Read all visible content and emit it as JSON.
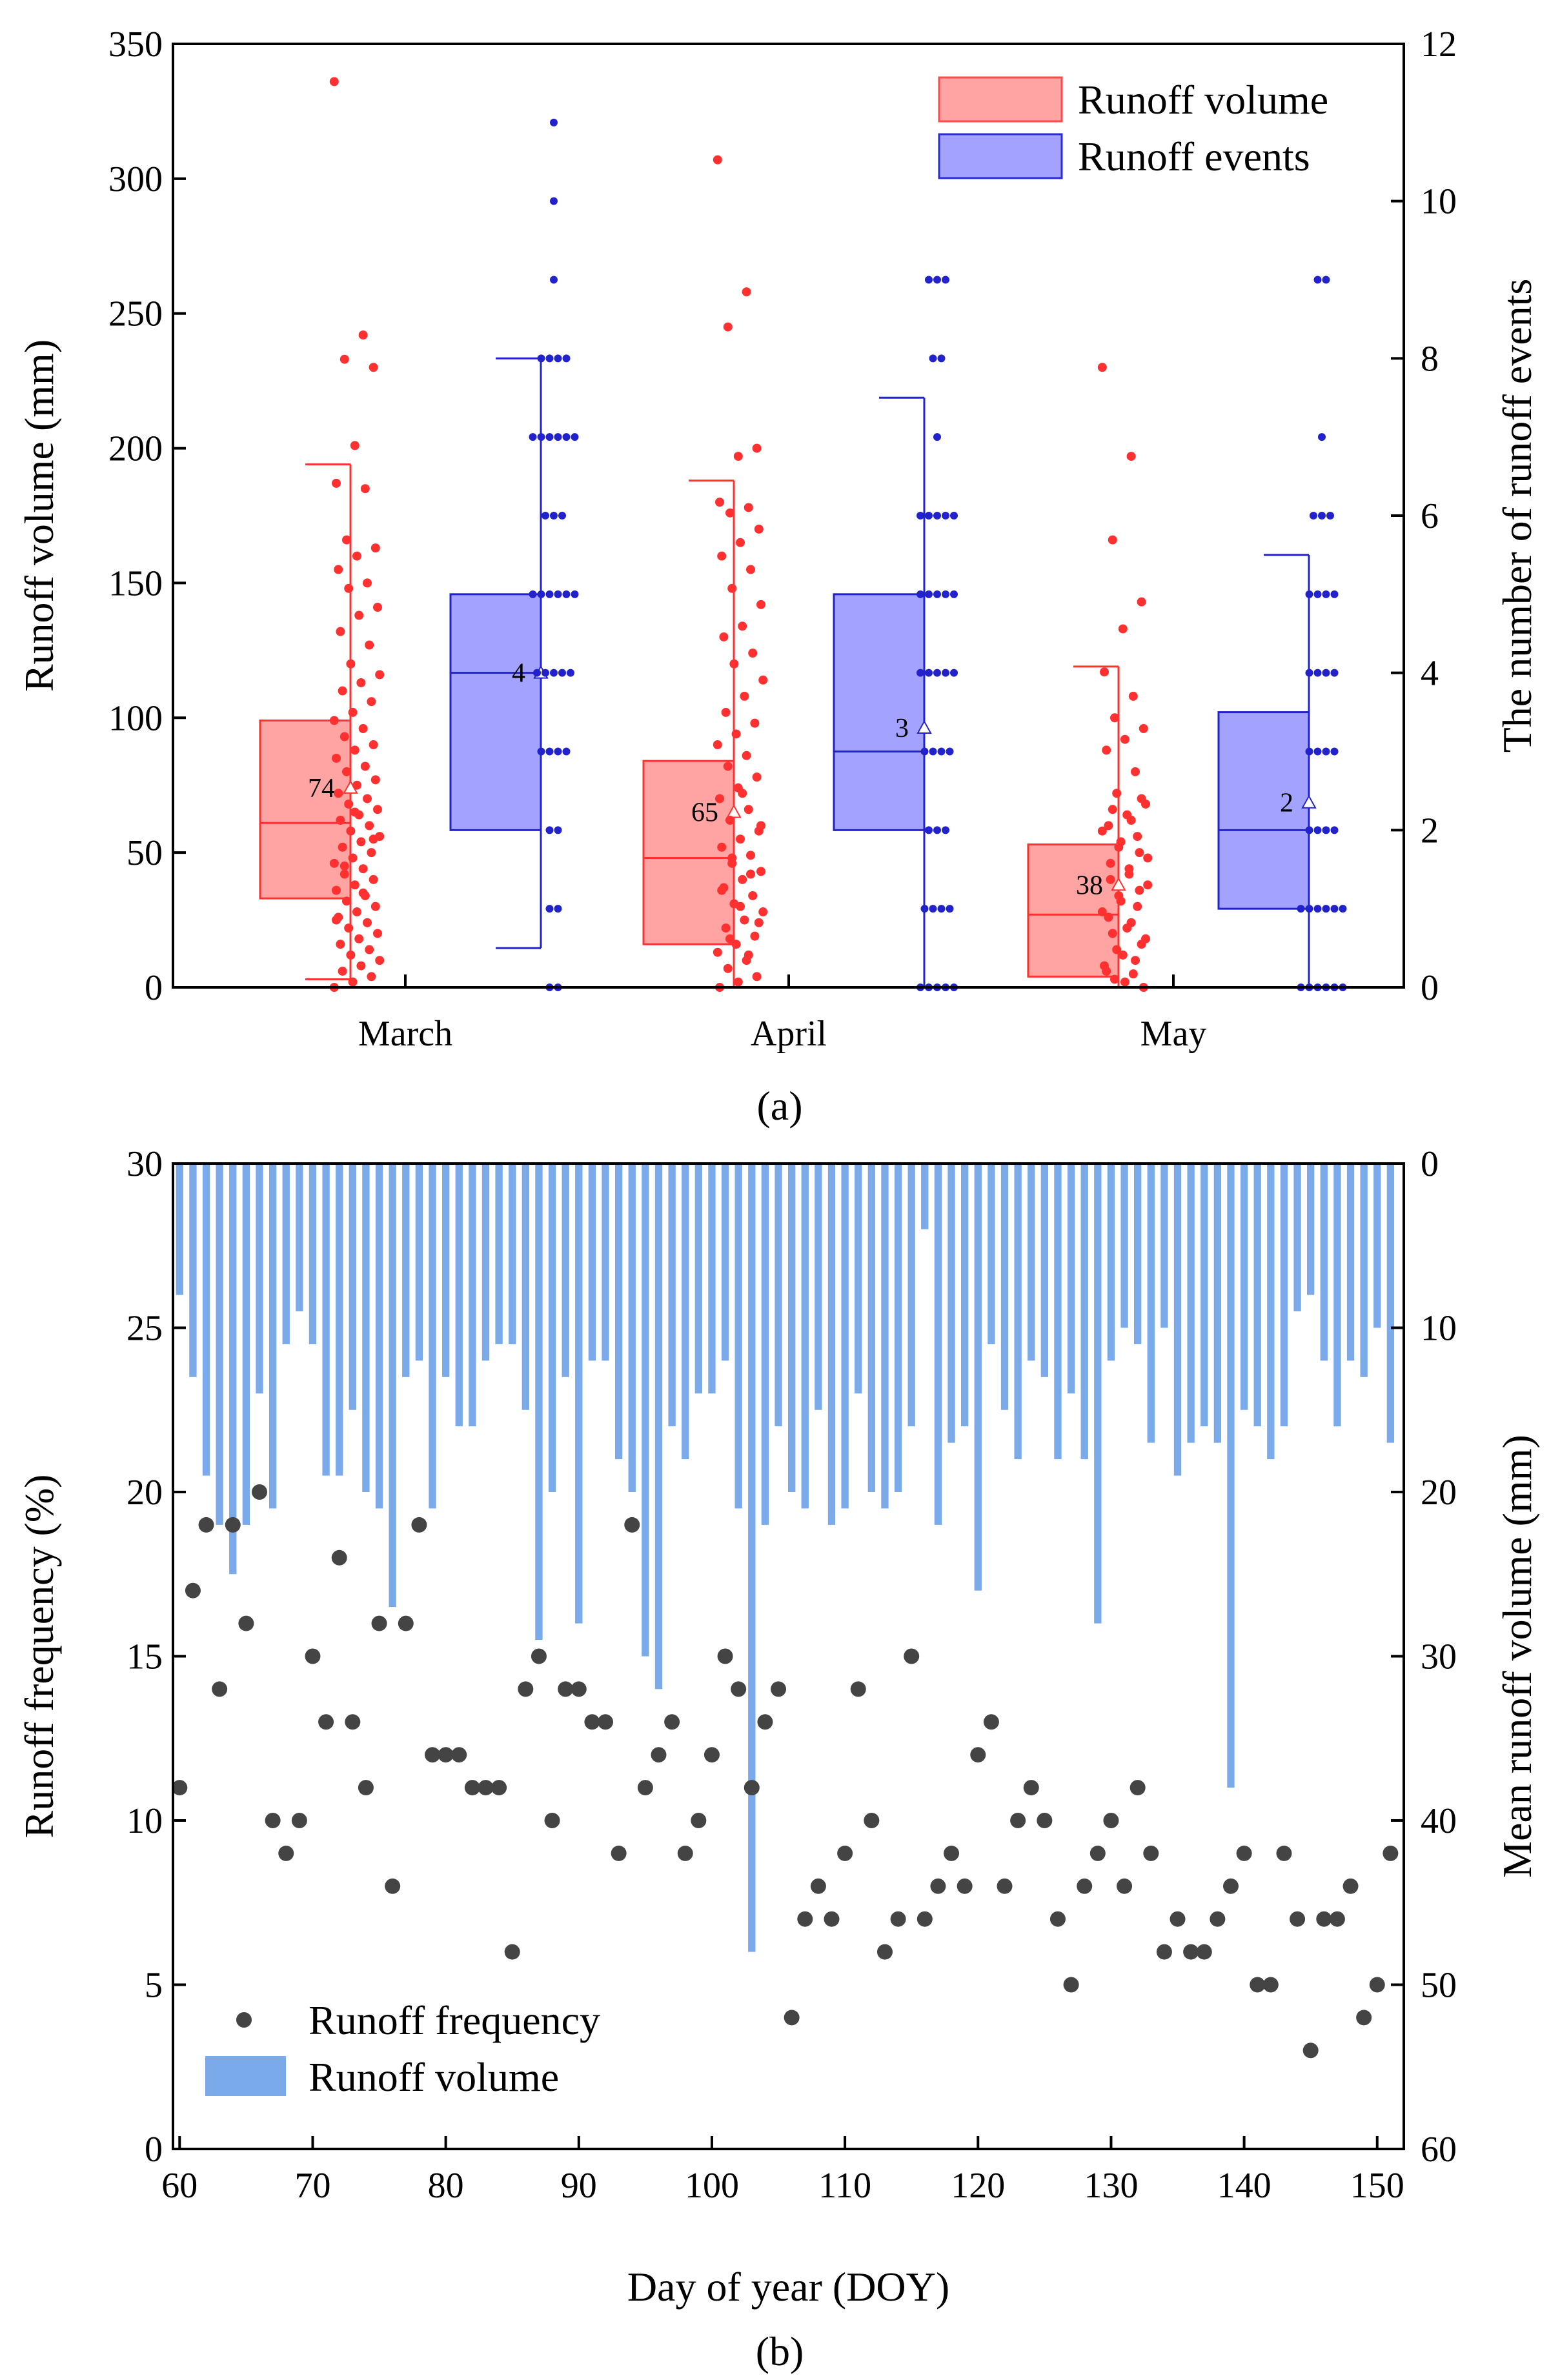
{
  "chart_data": [
    {
      "type": "box",
      "panel_label": "(a)",
      "categories": [
        "March",
        "April",
        "May"
      ],
      "ylabel_left": "Runoff volume (mm)",
      "ylabel_right": "The number of runoff events",
      "ylim_left": [
        0,
        350
      ],
      "ylim_right": [
        0,
        12
      ],
      "yticks_left": [
        "0",
        "50",
        "100",
        "150",
        "200",
        "250",
        "300",
        "350"
      ],
      "yticks_right": [
        "0",
        "2",
        "4",
        "6",
        "8",
        "10",
        "12"
      ],
      "legend": {
        "placement": "top-right",
        "items": [
          {
            "label": "Runoff volume",
            "color": "#ff4a4a",
            "fill": "#ffa3a3"
          },
          {
            "label": "Runoff events",
            "color": "#2b2bd9",
            "fill": "#a3a3ff"
          }
        ]
      },
      "series": [
        {
          "name": "Runoff volume",
          "axis": "left",
          "color": "#ff3030",
          "fill": "#ffa3a3",
          "boxes": [
            {
              "category": "March",
              "whisker_low": 3,
              "q1": 33,
              "median": 61,
              "q3": 99,
              "whisker_high": 194,
              "mean": 74,
              "mean_label": "74"
            },
            {
              "category": "April",
              "whisker_low": 0,
              "q1": 16,
              "median": 48,
              "q3": 84,
              "whisker_high": 188,
              "mean": 65,
              "mean_label": "65"
            },
            {
              "category": "May",
              "whisker_low": 0,
              "q1": 4,
              "median": 27,
              "q3": 53,
              "whisker_high": 119,
              "mean": 38,
              "mean_label": "38"
            }
          ],
          "points": [
            [
              336,
              242,
              233,
              230,
              201,
              187,
              185,
              166,
              163,
              160,
              155,
              150,
              148,
              141,
              138,
              132,
              127,
              120,
              116,
              113,
              110,
              106,
              102,
              99,
              96,
              93,
              90,
              88,
              85,
              82,
              80,
              77,
              75,
              72,
              70,
              68,
              66,
              64,
              62,
              60,
              58,
              56,
              54,
              52,
              50,
              48,
              46,
              44,
              42,
              40,
              38,
              36,
              34,
              32,
              30,
              28,
              26,
              24,
              22,
              20,
              18,
              16,
              14,
              12,
              10,
              8,
              6,
              4,
              2,
              0,
              35,
              45,
              55,
              65,
              25
            ],
            [
              307,
              258,
              245,
              200,
              197,
              180,
              178,
              176,
              170,
              165,
              160,
              155,
              148,
              142,
              134,
              130,
              124,
              120,
              114,
              108,
              102,
              98,
              94,
              90,
              86,
              82,
              78,
              74,
              70,
              66,
              62,
              58,
              55,
              52,
              49,
              46,
              43,
              40,
              37,
              34,
              31,
              28,
              25,
              22,
              19,
              16,
              13,
              10,
              7,
              4,
              2,
              0,
              12,
              18,
              24,
              30,
              36,
              42,
              48,
              60,
              72
            ],
            [
              230,
              197,
              166,
              143,
              133,
              117,
              108,
              100,
              96,
              92,
              88,
              80,
              72,
              68,
              64,
              60,
              56,
              52,
              48,
              44,
              40,
              36,
              32,
              28,
              24,
              20,
              16,
              12,
              8,
              5,
              3,
              0,
              2,
              6,
              10,
              14,
              18,
              22,
              26,
              30,
              34,
              38,
              42,
              46,
              50,
              54,
              58,
              62,
              66,
              70
            ]
          ]
        },
        {
          "name": "Runoff events",
          "axis": "right",
          "color": "#2222cc",
          "fill": "#a3a3ff",
          "boxes": [
            {
              "category": "March",
              "whisker_low": 0.5,
              "q1": 2,
              "median": 4,
              "q3": 5,
              "whisker_high": 8,
              "mean": 4,
              "mean_label": "4"
            },
            {
              "category": "April",
              "whisker_low": 0,
              "q1": 2,
              "median": 3,
              "q3": 5,
              "whisker_high": 7.5,
              "mean": 3.3,
              "mean_label": "3"
            },
            {
              "category": "May",
              "whisker_low": 0,
              "q1": 1,
              "median": 2,
              "q3": 3.5,
              "whisker_high": 5.5,
              "mean": 2.35,
              "mean_label": "2"
            }
          ],
          "points": [
            {
              "levels": [
                0,
                1,
                2,
                3,
                4,
                5,
                6,
                7,
                8,
                9,
                10,
                11
              ],
              "counts": [
                2,
                2,
                2,
                4,
                5,
                6,
                3,
                6,
                4,
                1,
                1,
                1
              ]
            },
            {
              "levels": [
                0,
                1,
                2,
                3,
                4,
                5,
                6,
                7,
                8,
                9
              ],
              "counts": [
                5,
                4,
                3,
                4,
                5,
                5,
                5,
                1,
                2,
                3
              ]
            },
            {
              "levels": [
                0,
                1,
                2,
                3,
                4,
                5,
                6,
                7,
                9
              ],
              "counts": [
                6,
                6,
                4,
                4,
                4,
                4,
                3,
                1,
                2
              ]
            }
          ]
        }
      ]
    },
    {
      "type": "bar+scatter",
      "panel_label": "(b)",
      "xlabel": "Day of year (DOY)",
      "ylabel_left": "Runoff frequency (%)",
      "ylabel_right": "Mean runoff volume (mm)",
      "xlim": [
        59.5,
        152
      ],
      "xticks": [
        "60",
        "70",
        "80",
        "90",
        "100",
        "110",
        "120",
        "130",
        "140",
        "150"
      ],
      "ylim_left": [
        0,
        30
      ],
      "ylim_right_inverted": [
        0,
        60
      ],
      "yticks_left": [
        "0",
        "5",
        "10",
        "15",
        "20",
        "25",
        "30"
      ],
      "yticks_right": [
        "0",
        "10",
        "20",
        "30",
        "40",
        "50",
        "60"
      ],
      "legend": {
        "placement": "bottom-left",
        "items": [
          {
            "label": "Runoff frequency",
            "color": "#444444"
          },
          {
            "label": "Runoff volume",
            "color": "#7aaaea"
          }
        ]
      },
      "x": [
        60,
        61,
        62,
        63,
        64,
        65,
        66,
        67,
        68,
        69,
        70,
        71,
        72,
        73,
        74,
        75,
        76,
        77,
        78,
        79,
        80,
        81,
        82,
        83,
        84,
        85,
        86,
        87,
        88,
        89,
        90,
        91,
        92,
        93,
        94,
        95,
        96,
        97,
        98,
        99,
        100,
        101,
        102,
        103,
        104,
        105,
        106,
        107,
        108,
        109,
        110,
        111,
        112,
        113,
        114,
        115,
        116,
        117,
        118,
        119,
        120,
        121,
        122,
        123,
        124,
        125,
        126,
        127,
        128,
        129,
        130,
        131,
        132,
        133,
        134,
        135,
        136,
        137,
        138,
        139,
        140,
        141,
        142,
        143,
        144,
        145,
        146,
        147,
        148,
        149,
        150,
        151
      ],
      "series": [
        {
          "name": "Runoff frequency",
          "type": "scatter",
          "axis": "left",
          "color": "#444444",
          "values": [
            11,
            17,
            19,
            14,
            19,
            16,
            20,
            10,
            9,
            10,
            15,
            13,
            18,
            13,
            11,
            16,
            8,
            16,
            19,
            12,
            12,
            12,
            11,
            11,
            11,
            6,
            14,
            15,
            10,
            14,
            14,
            13,
            13,
            9,
            19,
            11,
            12,
            13,
            9,
            10,
            12,
            15,
            14,
            11,
            13,
            14,
            4,
            7,
            8,
            7,
            9,
            14,
            10,
            6,
            7,
            15,
            7,
            8,
            9,
            8,
            12,
            13,
            8,
            10,
            11,
            10,
            7,
            5,
            8,
            9,
            10,
            8,
            11,
            9,
            6,
            7,
            6,
            6,
            7,
            8,
            9,
            5,
            5,
            9,
            7,
            3,
            7,
            7,
            8,
            4,
            5,
            9
          ]
        },
        {
          "name": "Runoff volume",
          "type": "bar",
          "axis": "right",
          "color": "#7aaaea",
          "values": [
            8,
            13,
            19,
            22,
            25,
            22,
            14,
            21,
            11,
            9,
            11,
            19,
            19,
            15,
            20,
            21,
            27,
            13,
            12,
            21,
            13,
            16,
            16,
            12,
            11,
            11,
            15,
            29,
            20,
            13,
            28,
            12,
            12,
            18,
            20,
            30,
            32,
            16,
            18,
            14,
            14,
            12,
            21,
            48,
            22,
            16,
            20,
            21,
            15,
            22,
            21,
            14,
            20,
            21,
            20,
            16,
            4,
            22,
            17,
            16,
            26,
            11,
            15,
            18,
            12,
            13,
            18,
            14,
            18,
            28,
            12,
            10,
            11,
            17,
            10,
            19,
            17,
            16,
            17,
            38,
            15,
            16,
            18,
            16,
            9,
            8,
            12,
            16,
            12,
            13,
            10,
            17
          ]
        }
      ]
    }
  ]
}
